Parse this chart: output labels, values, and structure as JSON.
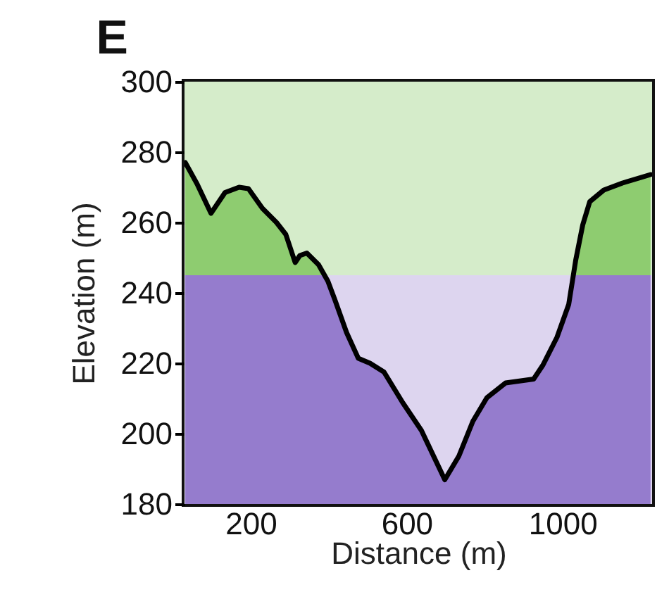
{
  "chart_data": {
    "type": "area",
    "title": "E",
    "xlabel": "Distance (m)",
    "ylabel": "Elevation (m)",
    "xlim": [
      30,
      1230
    ],
    "xticks": [
      200,
      600,
      1000
    ],
    "ylim": [
      180,
      300
    ],
    "yticks": [
      180,
      200,
      220,
      240,
      260,
      280,
      300
    ],
    "grid": false,
    "bands": [
      {
        "axis": "y",
        "from": 245,
        "to": 300,
        "color": "#d5ecca"
      },
      {
        "axis": "y",
        "from": 180,
        "to": 245,
        "color": "#ddd5ef"
      }
    ],
    "x": [
      32,
      62,
      98,
      134,
      170,
      194,
      230,
      266,
      290,
      314,
      326,
      344,
      374,
      398,
      416,
      446,
      476,
      506,
      542,
      590,
      638,
      698,
      734,
      770,
      806,
      854,
      926,
      950,
      986,
      1016,
      1034,
      1052,
      1070,
      1106,
      1154,
      1226
    ],
    "series": [
      {
        "color": "#000000",
        "values": [
          277,
          271,
          262.6,
          268.5,
          270,
          269.6,
          264,
          260,
          256.6,
          248.6,
          250.6,
          251.3,
          248,
          243.3,
          238,
          228.7,
          221.4,
          220,
          217.5,
          208.8,
          200.9,
          186.9,
          193.6,
          203.5,
          210.2,
          214.4,
          215.5,
          219.5,
          227.4,
          236.7,
          249.3,
          259.3,
          265.9,
          269.2,
          271.2,
          273.6
        ]
      }
    ]
  }
}
